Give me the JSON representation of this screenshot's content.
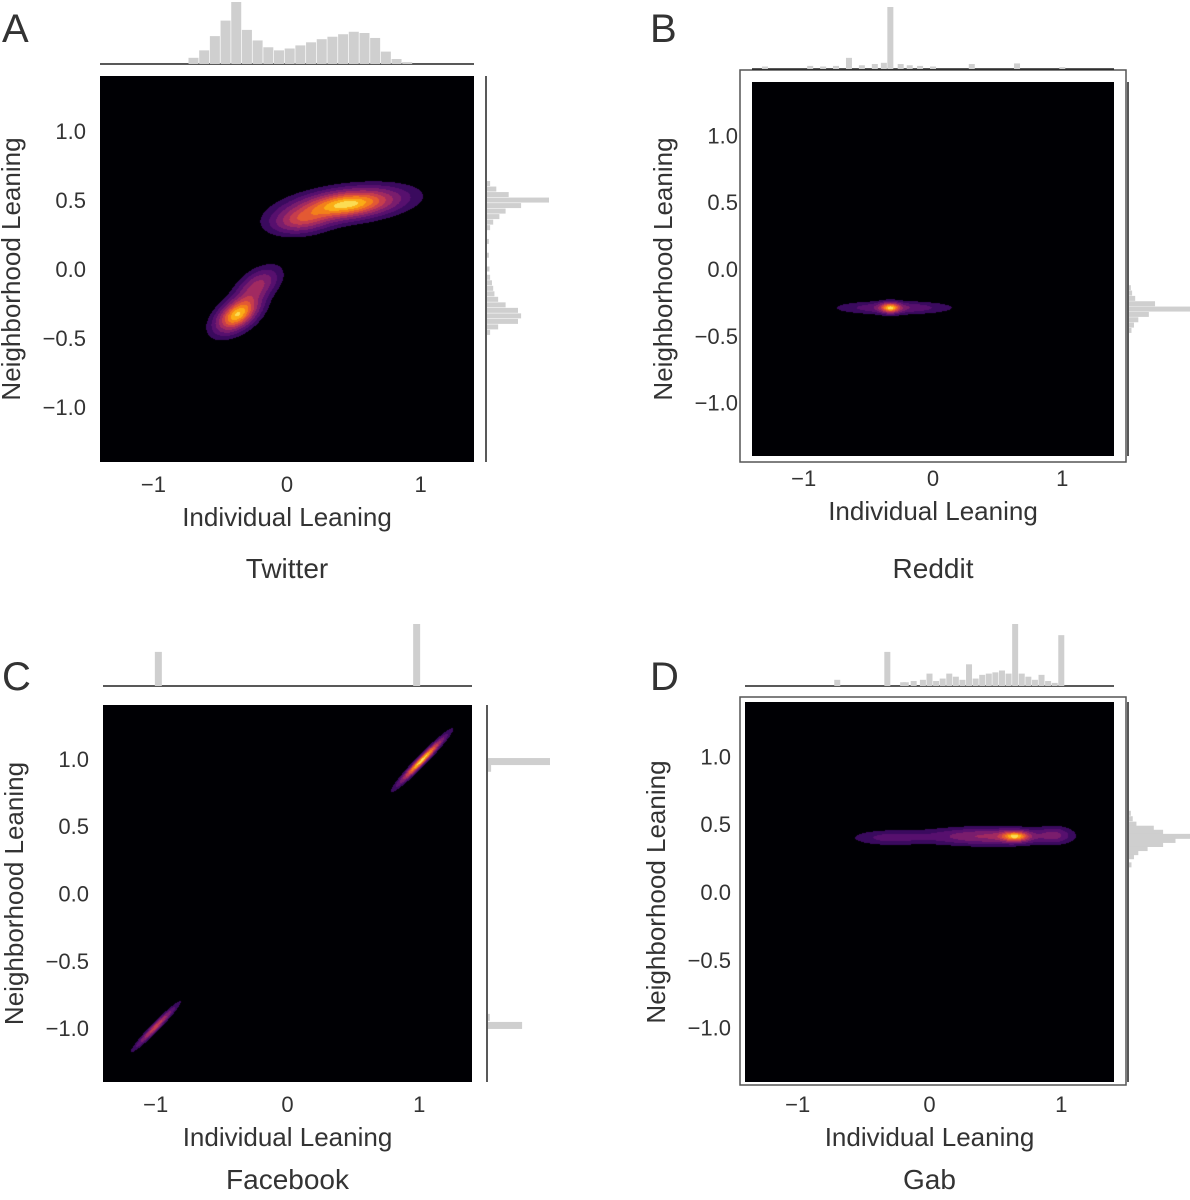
{
  "chart_data": [
    {
      "type": "heatmap",
      "kind": "2d-kde-jointplot",
      "panel_letter": "A",
      "platform": "Twitter",
      "xlabel": "Individual Leaning",
      "ylabel": "Neighborhood Leaning",
      "xlim": [
        -1.4,
        1.4
      ],
      "ylim": [
        -1.4,
        1.4
      ],
      "xticks": [
        -1,
        0,
        1
      ],
      "xtick_labels": [
        "−1",
        "0",
        "1"
      ],
      "yticks": [
        1.0,
        0.5,
        0.0,
        -0.5,
        -1.0
      ],
      "ytick_labels": [
        "1.0",
        "0.5",
        "0.0",
        "−0.5",
        "−1.0"
      ],
      "grid": false,
      "blobs": [
        {
          "x": 0.45,
          "y": 0.47,
          "sx": 0.24,
          "sy": 0.07,
          "corr": 0.35,
          "w": 1.0
        },
        {
          "x": 0.1,
          "y": 0.35,
          "sx": 0.14,
          "sy": 0.06,
          "corr": 0.2,
          "w": 0.45
        },
        {
          "x": -0.37,
          "y": -0.33,
          "sx": 0.1,
          "sy": 0.08,
          "corr": 0.5,
          "w": 0.95
        },
        {
          "x": -0.22,
          "y": -0.12,
          "sx": 0.1,
          "sy": 0.08,
          "corr": 0.5,
          "w": 0.4
        }
      ],
      "top_hist": [
        {
          "x": -0.7,
          "h": 0.1
        },
        {
          "x": -0.62,
          "h": 0.22
        },
        {
          "x": -0.54,
          "h": 0.45
        },
        {
          "x": -0.46,
          "h": 0.7
        },
        {
          "x": -0.38,
          "h": 1.0
        },
        {
          "x": -0.3,
          "h": 0.55
        },
        {
          "x": -0.22,
          "h": 0.38
        },
        {
          "x": -0.14,
          "h": 0.27
        },
        {
          "x": -0.06,
          "h": 0.22
        },
        {
          "x": 0.02,
          "h": 0.25
        },
        {
          "x": 0.1,
          "h": 0.3
        },
        {
          "x": 0.18,
          "h": 0.35
        },
        {
          "x": 0.26,
          "h": 0.4
        },
        {
          "x": 0.34,
          "h": 0.44
        },
        {
          "x": 0.42,
          "h": 0.48
        },
        {
          "x": 0.5,
          "h": 0.52
        },
        {
          "x": 0.58,
          "h": 0.5
        },
        {
          "x": 0.66,
          "h": 0.42
        },
        {
          "x": 0.74,
          "h": 0.2
        },
        {
          "x": 0.82,
          "h": 0.08
        },
        {
          "x": 0.9,
          "h": 0.03
        }
      ],
      "right_hist": [
        {
          "y": 0.62,
          "h": 0.05
        },
        {
          "y": 0.58,
          "h": 0.15
        },
        {
          "y": 0.54,
          "h": 0.35
        },
        {
          "y": 0.5,
          "h": 1.0
        },
        {
          "y": 0.46,
          "h": 0.55
        },
        {
          "y": 0.42,
          "h": 0.3
        },
        {
          "y": 0.38,
          "h": 0.2
        },
        {
          "y": 0.34,
          "h": 0.1
        },
        {
          "y": 0.3,
          "h": 0.05
        },
        {
          "y": 0.2,
          "h": 0.03
        },
        {
          "y": 0.1,
          "h": 0.03
        },
        {
          "y": 0.0,
          "h": 0.04
        },
        {
          "y": -0.06,
          "h": 0.05
        },
        {
          "y": -0.1,
          "h": 0.08
        },
        {
          "y": -0.14,
          "h": 0.1
        },
        {
          "y": -0.18,
          "h": 0.12
        },
        {
          "y": -0.22,
          "h": 0.18
        },
        {
          "y": -0.26,
          "h": 0.3
        },
        {
          "y": -0.3,
          "h": 0.5
        },
        {
          "y": -0.34,
          "h": 0.55
        },
        {
          "y": -0.38,
          "h": 0.5
        },
        {
          "y": -0.42,
          "h": 0.18
        },
        {
          "y": -0.46,
          "h": 0.05
        }
      ]
    },
    {
      "type": "heatmap",
      "kind": "2d-kde-jointplot",
      "panel_letter": "B",
      "platform": "Reddit",
      "xlabel": "Individual Leaning",
      "ylabel": "Neighborhood Leaning",
      "xlim": [
        -1.4,
        1.4
      ],
      "ylim": [
        -1.4,
        1.4
      ],
      "xticks": [
        -1,
        0,
        1
      ],
      "xtick_labels": [
        "−1",
        "0",
        "1"
      ],
      "yticks": [
        1.0,
        0.5,
        0.0,
        -0.5,
        -1.0
      ],
      "ytick_labels": [
        "1.0",
        "0.5",
        "0.0",
        "−0.5",
        "−1.0"
      ],
      "grid": false,
      "blobs": [
        {
          "x": -0.33,
          "y": -0.29,
          "sx": 0.05,
          "sy": 0.025,
          "corr": 0.0,
          "w": 1.0
        },
        {
          "x": -0.3,
          "y": -0.29,
          "sx": 0.26,
          "sy": 0.03,
          "corr": 0.0,
          "w": 0.35
        }
      ],
      "top_hist": [
        {
          "x": -1.3,
          "h": 0.04
        },
        {
          "x": -0.95,
          "h": 0.05
        },
        {
          "x": -0.85,
          "h": 0.04
        },
        {
          "x": -0.75,
          "h": 0.05
        },
        {
          "x": -0.65,
          "h": 0.18
        },
        {
          "x": -0.55,
          "h": 0.06
        },
        {
          "x": -0.45,
          "h": 0.08
        },
        {
          "x": -0.38,
          "h": 0.1
        },
        {
          "x": -0.33,
          "h": 1.0
        },
        {
          "x": -0.25,
          "h": 0.08
        },
        {
          "x": -0.18,
          "h": 0.06
        },
        {
          "x": -0.1,
          "h": 0.05
        },
        {
          "x": 0.0,
          "h": 0.04
        },
        {
          "x": 0.3,
          "h": 0.08
        },
        {
          "x": 0.65,
          "h": 0.09
        },
        {
          "x": 1.0,
          "h": 0.03
        }
      ],
      "right_hist": [
        {
          "y": -0.14,
          "h": 0.03
        },
        {
          "y": -0.18,
          "h": 0.05
        },
        {
          "y": -0.22,
          "h": 0.1
        },
        {
          "y": -0.26,
          "h": 0.42
        },
        {
          "y": -0.3,
          "h": 1.0
        },
        {
          "y": -0.34,
          "h": 0.32
        },
        {
          "y": -0.38,
          "h": 0.15
        },
        {
          "y": -0.42,
          "h": 0.08
        },
        {
          "y": -0.46,
          "h": 0.04
        }
      ]
    },
    {
      "type": "heatmap",
      "kind": "2d-kde-jointplot",
      "panel_letter": "C",
      "platform": "Facebook",
      "xlabel": "Individual Leaning",
      "ylabel": "Neighborhood Leaning",
      "xlim": [
        -1.4,
        1.4
      ],
      "ylim": [
        -1.4,
        1.4
      ],
      "xticks": [
        -1,
        0,
        1
      ],
      "xtick_labels": [
        "−1",
        "0",
        "1"
      ],
      "yticks": [
        1.0,
        0.5,
        0.0,
        -0.5,
        -1.0
      ],
      "ytick_labels": [
        "1.0",
        "0.5",
        "0.0",
        "−0.5",
        "−1.0"
      ],
      "grid": false,
      "blobs": [
        {
          "x": 1.02,
          "y": 0.99,
          "sx": 0.1,
          "sy": 0.1,
          "corr": 0.97,
          "w": 1.0
        },
        {
          "x": -1.0,
          "y": -0.99,
          "sx": 0.09,
          "sy": 0.09,
          "corr": 0.97,
          "w": 0.55
        }
      ],
      "top_hist": [
        {
          "x": -0.98,
          "h": 0.55
        },
        {
          "x": 0.98,
          "h": 1.0
        }
      ],
      "right_hist": [
        {
          "y": 0.98,
          "h": 1.0
        },
        {
          "y": 0.93,
          "h": 0.05
        },
        {
          "y": -0.98,
          "h": 0.55
        },
        {
          "y": -0.92,
          "h": 0.03
        }
      ]
    },
    {
      "type": "heatmap",
      "kind": "2d-kde-jointplot",
      "panel_letter": "D",
      "platform": "Gab",
      "xlabel": "Individual Leaning",
      "ylabel": "Neighborhood Leaning",
      "xlim": [
        -1.4,
        1.4
      ],
      "ylim": [
        -1.4,
        1.4
      ],
      "xticks": [
        -1,
        0,
        1
      ],
      "xtick_labels": [
        "−1",
        "0",
        "1"
      ],
      "yticks": [
        1.0,
        0.5,
        0.0,
        -0.5,
        -1.0
      ],
      "ytick_labels": [
        "1.0",
        "0.5",
        "0.0",
        "−0.5",
        "−1.0"
      ],
      "grid": false,
      "blobs": [
        {
          "x": 0.65,
          "y": 0.41,
          "sx": 0.07,
          "sy": 0.025,
          "corr": 0.0,
          "w": 1.0
        },
        {
          "x": 0.45,
          "y": 0.41,
          "sx": 0.3,
          "sy": 0.04,
          "corr": 0.0,
          "w": 0.55
        },
        {
          "x": -0.3,
          "y": 0.4,
          "sx": 0.18,
          "sy": 0.035,
          "corr": 0.0,
          "w": 0.25
        },
        {
          "x": 0.95,
          "y": 0.42,
          "sx": 0.08,
          "sy": 0.04,
          "corr": 0.0,
          "w": 0.3
        }
      ],
      "top_hist": [
        {
          "x": -0.7,
          "h": 0.1
        },
        {
          "x": -0.32,
          "h": 0.55
        },
        {
          "x": -0.2,
          "h": 0.06
        },
        {
          "x": -0.18,
          "h": 0.06
        },
        {
          "x": -0.12,
          "h": 0.08
        },
        {
          "x": -0.05,
          "h": 0.1
        },
        {
          "x": 0.0,
          "h": 0.2
        },
        {
          "x": 0.05,
          "h": 0.08
        },
        {
          "x": 0.1,
          "h": 0.12
        },
        {
          "x": 0.15,
          "h": 0.2
        },
        {
          "x": 0.2,
          "h": 0.15
        },
        {
          "x": 0.25,
          "h": 0.1
        },
        {
          "x": 0.3,
          "h": 0.35
        },
        {
          "x": 0.35,
          "h": 0.12
        },
        {
          "x": 0.4,
          "h": 0.18
        },
        {
          "x": 0.45,
          "h": 0.2
        },
        {
          "x": 0.5,
          "h": 0.22
        },
        {
          "x": 0.55,
          "h": 0.25
        },
        {
          "x": 0.6,
          "h": 0.2
        },
        {
          "x": 0.65,
          "h": 1.0
        },
        {
          "x": 0.7,
          "h": 0.2
        },
        {
          "x": 0.75,
          "h": 0.15
        },
        {
          "x": 0.8,
          "h": 0.1
        },
        {
          "x": 0.85,
          "h": 0.18
        },
        {
          "x": 0.9,
          "h": 0.08
        },
        {
          "x": 0.95,
          "h": 0.05
        },
        {
          "x": 1.0,
          "h": 0.82
        }
      ],
      "right_hist": [
        {
          "y": 0.58,
          "h": 0.03
        },
        {
          "y": 0.54,
          "h": 0.06
        },
        {
          "y": 0.5,
          "h": 0.12
        },
        {
          "y": 0.47,
          "h": 0.4
        },
        {
          "y": 0.44,
          "h": 0.55
        },
        {
          "y": 0.41,
          "h": 1.0
        },
        {
          "y": 0.38,
          "h": 0.75
        },
        {
          "y": 0.35,
          "h": 0.55
        },
        {
          "y": 0.32,
          "h": 0.3
        },
        {
          "y": 0.29,
          "h": 0.15
        },
        {
          "y": 0.26,
          "h": 0.08
        },
        {
          "y": 0.2,
          "h": 0.04
        }
      ]
    }
  ]
}
